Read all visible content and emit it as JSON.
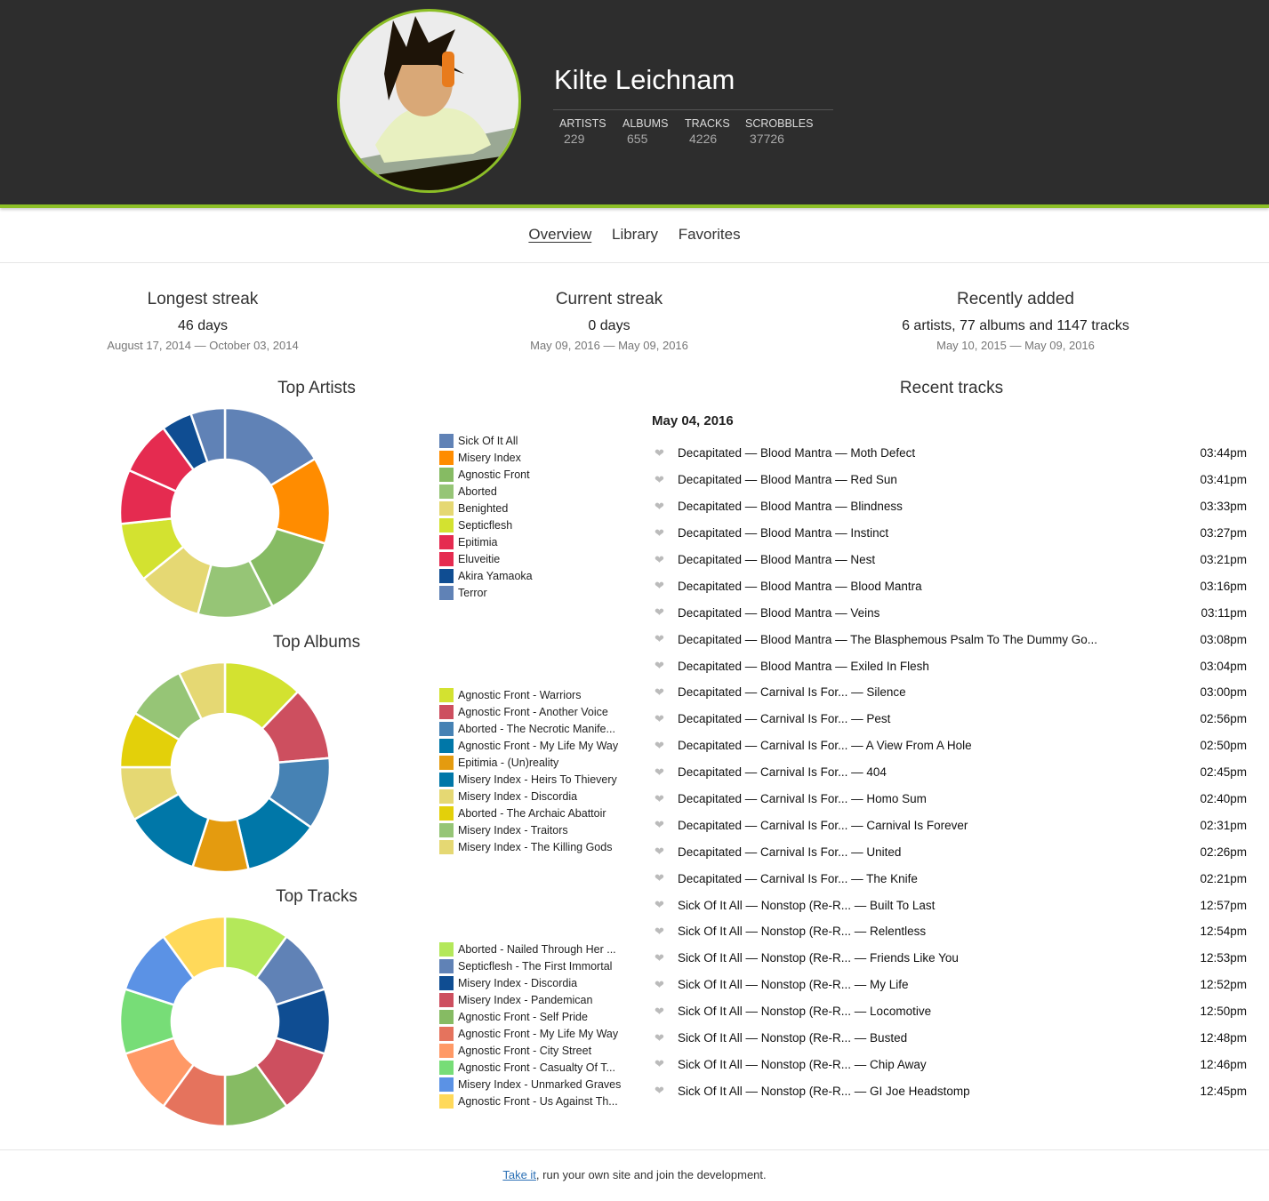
{
  "profile": {
    "name": "Kilte Leichnam",
    "stats": [
      {
        "label": "ARTISTS",
        "value": "229"
      },
      {
        "label": "ALBUMS",
        "value": "655"
      },
      {
        "label": "TRACKS",
        "value": "4226"
      },
      {
        "label": "SCROBBLES",
        "value": "37726"
      }
    ]
  },
  "nav": {
    "items": [
      "Overview",
      "Library",
      "Favorites"
    ],
    "active": "Overview"
  },
  "summary": [
    {
      "title": "Longest streak",
      "value": "46 days",
      "dates": "August 17, 2014 — October 03, 2014"
    },
    {
      "title": "Current streak",
      "value": "0 days",
      "dates": "May 09, 2016 — May 09, 2016"
    },
    {
      "title": "Recently added",
      "value": "6 artists, 77 albums and 1147 tracks",
      "dates": "May 10, 2015 — May 09, 2016"
    }
  ],
  "colors": {
    "accent": "#8cbf26",
    "header_bg": "#2d2d2d"
  },
  "chart_data": [
    {
      "type": "pie",
      "title": "Top Artists",
      "categories": [
        "Sick Of It All",
        "Misery Index",
        "Agnostic Front",
        "Aborted",
        "Benighted",
        "Septicflesh",
        "Epitimia",
        "Eluveitie",
        "Akira Yamaoka",
        "Terror"
      ],
      "values": [
        59,
        48,
        46,
        42,
        36,
        33,
        30,
        30,
        17,
        19
      ],
      "colors": [
        "#6082b6",
        "#ff8c00",
        "#86bb63",
        "#96c576",
        "#e5d873",
        "#d3e230",
        "#e52b50",
        "#e52b50",
        "#0f4d92",
        "#6082b6"
      ]
    },
    {
      "type": "pie",
      "title": "Top Albums",
      "categories": [
        "Agnostic Front - Warriors",
        "Agnostic Front - Another Voice",
        "Aborted - The Necrotic Manife...",
        "Agnostic Front - My Life My Way",
        "Epitimia - (Un)reality",
        "Misery Index - Heirs To Thievery",
        "Misery Index - Discordia",
        "Aborted - The Archaic Abattoir",
        "Misery Index - Traitors",
        "Misery Index - The Killing Gods"
      ],
      "values": [
        44,
        41,
        40,
        42,
        31,
        42,
        30,
        31,
        33,
        26
      ],
      "colors": [
        "#d3e230",
        "#cd4f5f",
        "#4682b4",
        "#0077a8",
        "#e49b0f",
        "#0077a8",
        "#e5d873",
        "#e3d00a",
        "#96c576",
        "#e5d873"
      ]
    },
    {
      "type": "pie",
      "title": "Top Tracks",
      "categories": [
        "Aborted - Nailed Through Her ...",
        "Septicflesh - The First Immortal",
        "Misery Index - Discordia",
        "Misery Index - Pandemican",
        "Agnostic Front - Self Pride",
        "Agnostic Front - My Life My Way",
        "Agnostic Front - City Street",
        "Agnostic Front - Casualty Of T...",
        "Misery Index - Unmarked Graves",
        "Agnostic Front - Us Against Th..."
      ],
      "values": [
        36,
        36,
        36,
        36,
        36,
        36,
        36,
        36,
        36,
        36
      ],
      "colors": [
        "#b4e85a",
        "#6082b6",
        "#0f4d92",
        "#cd4f5f",
        "#86bb63",
        "#e5735d",
        "#ff9966",
        "#77dd77",
        "#5b92e5",
        "#ffd95a"
      ]
    }
  ],
  "recent": {
    "title": "Recent tracks",
    "date": "May 04, 2016",
    "tracks": [
      [
        "Decapitated — Blood Mantra — Moth Defect",
        "03:44pm"
      ],
      [
        "Decapitated — Blood Mantra — Red Sun",
        "03:41pm"
      ],
      [
        "Decapitated — Blood Mantra — Blindness",
        "03:33pm"
      ],
      [
        "Decapitated — Blood Mantra — Instinct",
        "03:27pm"
      ],
      [
        "Decapitated — Blood Mantra — Nest",
        "03:21pm"
      ],
      [
        "Decapitated — Blood Mantra — Blood Mantra",
        "03:16pm"
      ],
      [
        "Decapitated — Blood Mantra — Veins",
        "03:11pm"
      ],
      [
        "Decapitated — Blood Mantra — The Blasphemous Psalm To The Dummy Go...",
        "03:08pm"
      ],
      [
        "Decapitated — Blood Mantra — Exiled In Flesh",
        "03:04pm"
      ],
      [
        "Decapitated — Carnival Is For...  — Silence",
        "03:00pm"
      ],
      [
        "Decapitated — Carnival Is For...  — Pest",
        "02:56pm"
      ],
      [
        "Decapitated — Carnival Is For...  — A View From A Hole",
        "02:50pm"
      ],
      [
        "Decapitated — Carnival Is For...  — 404",
        "02:45pm"
      ],
      [
        "Decapitated — Carnival Is For...  — Homo Sum",
        "02:40pm"
      ],
      [
        "Decapitated — Carnival Is For...  — Carnival Is Forever",
        "02:31pm"
      ],
      [
        "Decapitated — Carnival Is For...  — United",
        "02:26pm"
      ],
      [
        "Decapitated — Carnival Is For...  — The Knife",
        "02:21pm"
      ],
      [
        "Sick Of It All — Nonstop (Re-R...  — Built To Last",
        "12:57pm"
      ],
      [
        "Sick Of It All — Nonstop (Re-R...  — Relentless",
        "12:54pm"
      ],
      [
        "Sick Of It All — Nonstop (Re-R...  — Friends Like You",
        "12:53pm"
      ],
      [
        "Sick Of It All — Nonstop (Re-R...  — My Life",
        "12:52pm"
      ],
      [
        "Sick Of It All — Nonstop (Re-R...  — Locomotive",
        "12:50pm"
      ],
      [
        "Sick Of It All — Nonstop (Re-R...  — Busted",
        "12:48pm"
      ],
      [
        "Sick Of It All — Nonstop (Re-R...  — Chip Away",
        "12:46pm"
      ],
      [
        "Sick Of It All — Nonstop (Re-R...  — GI Joe Headstomp",
        "12:45pm"
      ]
    ]
  },
  "footer": {
    "link": "Take it",
    "text": ", run your own site and join the development."
  }
}
